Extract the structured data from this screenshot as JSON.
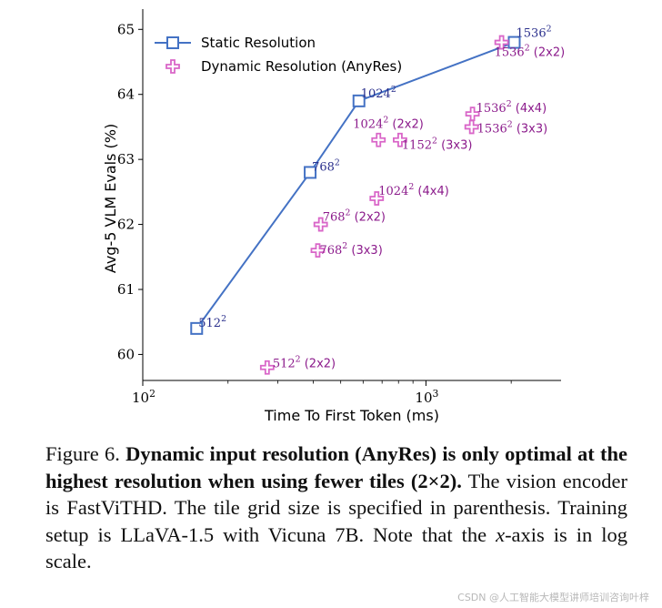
{
  "chart_data": {
    "type": "scatter",
    "xscale": "log",
    "xlabel": "Time To First Token (ms)",
    "ylabel": "Avg-5 VLM Evals (%)",
    "xlim": [
      100,
      3000
    ],
    "ylim": [
      59.6,
      65.2
    ],
    "xticks": [
      {
        "value": 100,
        "base": "10",
        "exp": "2"
      },
      {
        "value": 1000,
        "base": "10",
        "exp": "3"
      }
    ],
    "yticks": [
      60,
      61,
      62,
      63,
      64,
      65
    ],
    "grid": false,
    "legend_position": "top-left",
    "series": [
      {
        "name": "Static Resolution",
        "marker": "square",
        "color": "#4472c4",
        "line": true,
        "points": [
          {
            "x": 155,
            "y": 60.4,
            "base": "512",
            "exp": "2",
            "suffix": ""
          },
          {
            "x": 390,
            "y": 62.8,
            "base": "768",
            "exp": "2",
            "suffix": ""
          },
          {
            "x": 580,
            "y": 63.9,
            "base": "1024",
            "exp": "2",
            "suffix": ""
          },
          {
            "x": 2050,
            "y": 64.8,
            "base": "1536",
            "exp": "2",
            "suffix": ""
          }
        ]
      },
      {
        "name": "Dynamic Resolution (AnyRes)",
        "marker": "plus",
        "color": "#d966c8",
        "line": false,
        "points": [
          {
            "x": 275,
            "y": 59.8,
            "base": "512",
            "exp": "2",
            "suffix": "(2x2)"
          },
          {
            "x": 415,
            "y": 61.6,
            "base": "768",
            "exp": "2",
            "suffix": "(3x3)"
          },
          {
            "x": 425,
            "y": 62.0,
            "base": "768",
            "exp": "2",
            "suffix": "(2x2)"
          },
          {
            "x": 670,
            "y": 62.4,
            "base": "1024",
            "exp": "2",
            "suffix": "(4x4)"
          },
          {
            "x": 680,
            "y": 63.3,
            "base": "1024",
            "exp": "2",
            "suffix": "(2x2)"
          },
          {
            "x": 810,
            "y": 63.3,
            "base": "1152",
            "exp": "2",
            "suffix": "(3x3)"
          },
          {
            "x": 1460,
            "y": 63.7,
            "base": "1536",
            "exp": "2",
            "suffix": "(4x4)"
          },
          {
            "x": 1450,
            "y": 63.5,
            "base": "1536",
            "exp": "2",
            "suffix": "(3x3)"
          },
          {
            "x": 1850,
            "y": 64.8,
            "base": "1536",
            "exp": "2",
            "suffix": "(2x2)"
          }
        ]
      }
    ]
  },
  "caption": {
    "figure_label": "Figure 6.",
    "bold_text": "Dynamic input resolution (AnyRes) is only optimal at the highest resolution when using fewer tiles (2×2).",
    "body_text_1": "The vision encoder is FastViTHD. The tile grid size is specified in parenthesis. Training setup is LLaVA-1.5 with Vicuna 7B. Note that the",
    "italic_x": "x",
    "body_text_2": "-axis is in log scale."
  },
  "watermark": "CSDN @人工智能大模型讲师培训咨询叶梓"
}
